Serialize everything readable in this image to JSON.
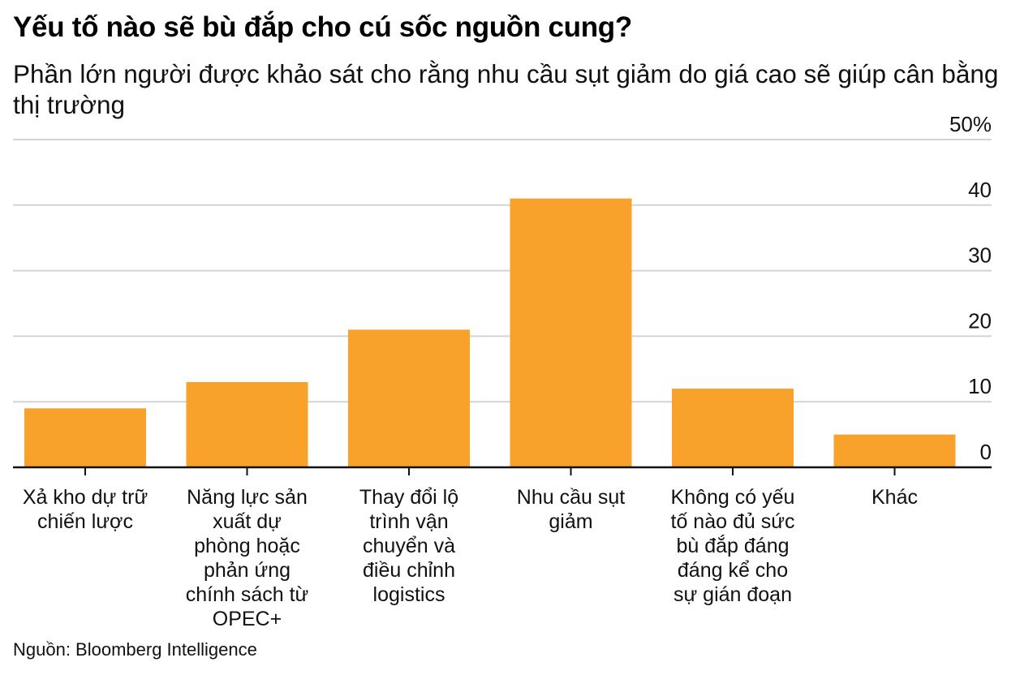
{
  "title": "Yếu tố nào sẽ bù đắp cho cú sốc nguồn cung?",
  "subtitle": "Phần lớn người được khảo sát cho rằng nhu cầu sụt giảm do giá cao sẽ giúp cân bằng thị trường",
  "source": "Nguồn: Bloomberg Intelligence",
  "colors": {
    "bar": "#F8A12B",
    "grid": "#D4D4D4",
    "axis": "#111111"
  },
  "chart_data": {
    "type": "bar",
    "categories": [
      [
        "Xả kho dự trữ",
        "chiến lược"
      ],
      [
        "Năng lực sản",
        "xuất dự",
        "phòng hoặc",
        "phản ứng",
        "chính sách từ",
        "OPEC+"
      ],
      [
        "Thay đổi lộ",
        "trình vận",
        "chuyển và",
        "điều chỉnh",
        "logistics"
      ],
      [
        "Nhu cầu sụt",
        "giảm"
      ],
      [
        "Không có yếu",
        "tố nào đủ sức",
        "bù đắp đáng",
        "đáng kể cho",
        "sự gián đoạn"
      ],
      [
        "Khác"
      ]
    ],
    "values": [
      9,
      13,
      21,
      41,
      12,
      5
    ],
    "ylim": [
      0,
      50
    ],
    "yticks": [
      0,
      10,
      20,
      30,
      40,
      50
    ],
    "ytick_labels": [
      "0",
      "10",
      "20",
      "30",
      "40",
      "50%"
    ],
    "ylabel": "",
    "xlabel": "",
    "grid": true,
    "legend": "none"
  }
}
